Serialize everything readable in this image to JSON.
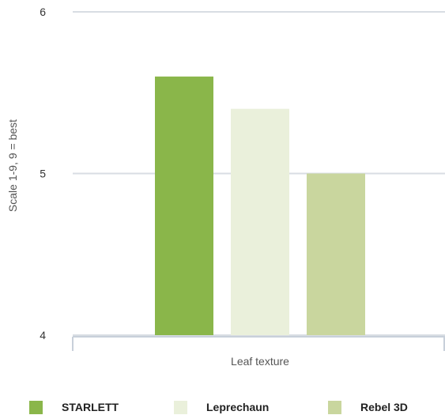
{
  "chart_data": {
    "type": "bar",
    "categories": [
      "Leaf texture"
    ],
    "series": [
      {
        "name": "STARLETT",
        "values": [
          5.6
        ],
        "color": "#8ab64a"
      },
      {
        "name": "Leprechaun",
        "values": [
          5.4
        ],
        "color": "#eaf0db"
      },
      {
        "name": "Rebel 3D",
        "values": [
          5.0
        ],
        "color": "#c9d69e"
      }
    ],
    "title": "",
    "xlabel": "Leaf texture",
    "ylabel": "Scale 1-9, 9 = best",
    "ylim": [
      4,
      6
    ],
    "yticks": [
      "4",
      "5",
      "6"
    ],
    "grid": true,
    "legend_position": "bottom"
  },
  "colors": {
    "grid": "#d8dde3",
    "axis": "#c8d0da"
  }
}
